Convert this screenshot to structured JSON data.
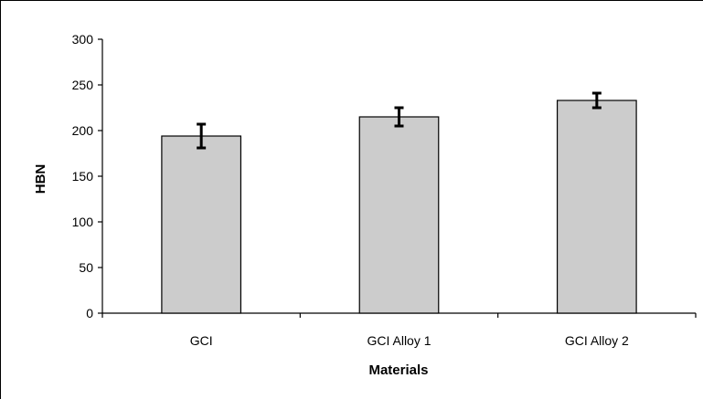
{
  "chart_data": {
    "type": "bar",
    "categories": [
      "GCI",
      "GCI Alloy 1",
      "GCI Alloy 2"
    ],
    "values": [
      194,
      215,
      233
    ],
    "error": [
      13,
      10,
      8
    ],
    "xlabel": "Materials",
    "ylabel": "HBN",
    "ylim": [
      0,
      300
    ],
    "yticks": [
      0,
      50,
      100,
      150,
      200,
      250,
      300
    ],
    "grid": false,
    "legend": "none",
    "bar_color": "#cccccc",
    "bar_edge_color": "#000000"
  }
}
